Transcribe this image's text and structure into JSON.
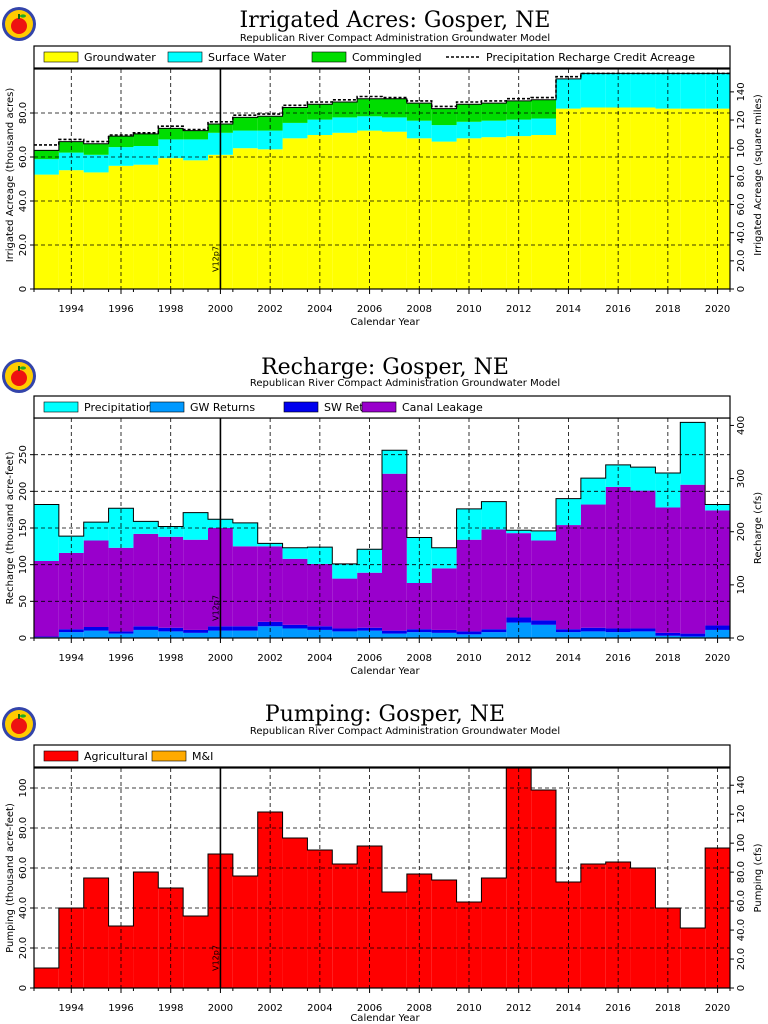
{
  "chart_data": [
    {
      "type": "area",
      "title": "Irrigated Acres: Gosper, NE",
      "subtitle": "Republican River Compact Administration Groundwater Model",
      "xlabel": "Calendar Year",
      "ylabel": "Irrigated Acreage (thousand acres)",
      "ylabel_right": "Irrigated Acreage (square miles)",
      "xlim": [
        1993,
        2021
      ],
      "ylim": [
        0,
        100
      ],
      "ylim_right": [
        0,
        156.25
      ],
      "x_ticks": [
        "1994",
        "1996",
        "1998",
        "2000",
        "2002",
        "2004",
        "2006",
        "2008",
        "2010",
        "2012",
        "2014",
        "2016",
        "2018",
        "2020"
      ],
      "y_ticks": [
        "0",
        "20.0",
        "40.0",
        "60.0",
        "80.0"
      ],
      "y_ticks_right": [
        "0",
        "20.0",
        "40.0",
        "60.0",
        "80.0",
        "100",
        "120",
        "140"
      ],
      "annotation": "V12p7",
      "annotation_x": 2000.5,
      "legend": [
        "Groundwater",
        "Surface Water",
        "Commingled",
        "Precipitation Recharge Credit Acreage"
      ],
      "colors": [
        "#ffff00",
        "#00ffff",
        "#00dd00",
        "#000000"
      ],
      "grid": true,
      "years": [
        1993,
        1994,
        1995,
        1996,
        1997,
        1998,
        1999,
        2000,
        2001,
        2002,
        2003,
        2004,
        2005,
        2006,
        2007,
        2008,
        2009,
        2010,
        2011,
        2012,
        2013,
        2014,
        2015,
        2016,
        2017,
        2018,
        2019,
        2020
      ],
      "series": [
        {
          "name": "Groundwater",
          "values": [
            52,
            54,
            53,
            56,
            56.5,
            59.5,
            58.5,
            61,
            64,
            63.5,
            68.5,
            70,
            71,
            72,
            71.5,
            68.5,
            67,
            68.5,
            69,
            69.5,
            70,
            82,
            82.5,
            82.5,
            82.5,
            82,
            82,
            82
          ]
        },
        {
          "name": "Surface Water",
          "values": [
            7,
            8,
            8,
            8.5,
            8.5,
            8.5,
            9.5,
            10,
            8,
            8.5,
            7,
            7,
            7,
            6.5,
            6.5,
            8,
            7.5,
            7.5,
            7.5,
            7.5,
            7.5,
            13.5,
            15.5,
            15.5,
            15.5,
            16,
            16,
            16
          ]
        },
        {
          "name": "Commingled",
          "values": [
            4,
            5,
            5,
            5,
            5.5,
            5,
            4,
            4,
            6,
            6.5,
            7,
            7,
            7,
            8,
            8.5,
            8,
            7.5,
            8,
            8,
            8.5,
            8.5,
            0,
            0,
            0,
            0,
            0,
            0,
            0
          ]
        }
      ],
      "precip_credit": [
        65.5,
        68,
        67,
        70,
        71,
        74,
        72.5,
        76,
        79,
        79.5,
        83.5,
        85,
        86,
        87.5,
        87,
        85.5,
        83,
        85,
        85.5,
        86.5,
        87,
        96.5,
        98,
        98,
        98,
        98,
        98,
        98
      ]
    },
    {
      "type": "area",
      "title": "Recharge: Gosper, NE",
      "subtitle": "Republican River Compact Administration Groundwater Model",
      "xlabel": "Calendar Year",
      "ylabel": "Recharge (thousand acre-feet)",
      "ylabel_right": "Recharge (cfs)",
      "xlim": [
        1993,
        2021
      ],
      "ylim": [
        0,
        300
      ],
      "ylim_right": [
        0,
        414
      ],
      "x_ticks": [
        "1994",
        "1996",
        "1998",
        "2000",
        "2002",
        "2004",
        "2006",
        "2008",
        "2010",
        "2012",
        "2014",
        "2016",
        "2018",
        "2020"
      ],
      "y_ticks": [
        "0",
        "50",
        "100",
        "150",
        "200",
        "250"
      ],
      "y_ticks_right": [
        "0",
        "100",
        "200",
        "300",
        "400"
      ],
      "annotation": "V12p7",
      "annotation_x": 2000.5,
      "legend": [
        "Precipitation",
        "GW Returns",
        "SW Returns",
        "Canal Leakage"
      ],
      "colors": [
        "#00ffff",
        "#0099ff",
        "#0000ee",
        "#9900cc"
      ],
      "grid": true,
      "years": [
        1993,
        1994,
        1995,
        1996,
        1997,
        1998,
        1999,
        2000,
        2001,
        2002,
        2003,
        2004,
        2005,
        2006,
        2007,
        2008,
        2009,
        2010,
        2011,
        2012,
        2013,
        2014,
        2015,
        2016,
        2017,
        2018,
        2019,
        2020
      ],
      "series": [
        {
          "name": "GW Returns",
          "values": [
            1,
            8,
            10,
            6,
            11,
            9,
            7,
            10,
            10,
            16,
            13,
            11,
            9,
            10,
            6,
            8,
            7,
            5,
            8,
            21,
            18,
            8,
            9,
            8,
            9,
            3,
            2,
            11
          ]
        },
        {
          "name": "SW Returns",
          "values": [
            1,
            4,
            5,
            3,
            5,
            5,
            4,
            6,
            6,
            6,
            5,
            5,
            4,
            4,
            4,
            4,
            4,
            4,
            4,
            7,
            6,
            4,
            5,
            5,
            4,
            4,
            4,
            6
          ]
        },
        {
          "name": "Canal Leakage",
          "values": [
            103,
            104,
            118,
            114,
            126,
            124,
            123,
            134,
            109,
            103,
            90,
            85,
            68,
            75,
            214,
            63,
            84,
            125,
            136,
            115,
            109,
            142,
            168,
            193,
            188,
            171,
            203,
            157
          ]
        },
        {
          "name": "Precipitation",
          "values": [
            77,
            23,
            25,
            54,
            17,
            14,
            37,
            12,
            32,
            4,
            15,
            23,
            20,
            32,
            32,
            62,
            28,
            42,
            38,
            4,
            13,
            36,
            36,
            30,
            32,
            47,
            85,
            8
          ]
        }
      ]
    },
    {
      "type": "area",
      "title": "Pumping: Gosper, NE",
      "subtitle": "Republican River Compact Administration Groundwater Model",
      "xlabel": "Calendar Year",
      "ylabel": "Pumping (thousand acre-feet)",
      "ylabel_right": "Pumping (cfs)",
      "xlim": [
        1993,
        2021
      ],
      "ylim": [
        0,
        110
      ],
      "ylim_right": [
        0,
        151.9
      ],
      "x_ticks": [
        "1994",
        "1996",
        "1998",
        "2000",
        "2002",
        "2004",
        "2006",
        "2008",
        "2010",
        "2012",
        "2014",
        "2016",
        "2018",
        "2020"
      ],
      "y_ticks": [
        "0",
        "20.0",
        "40.0",
        "60.0",
        "80.0",
        "100"
      ],
      "y_ticks_right": [
        "0",
        "20.0",
        "40.0",
        "60.0",
        "80.0",
        "100",
        "120",
        "140"
      ],
      "annotation": "V12p7",
      "annotation_x": 2000.5,
      "legend": [
        "Agricultural",
        "M&I"
      ],
      "colors": [
        "#ff0000",
        "#ffaa00"
      ],
      "grid": true,
      "years": [
        1993,
        1994,
        1995,
        1996,
        1997,
        1998,
        1999,
        2000,
        2001,
        2002,
        2003,
        2004,
        2005,
        2006,
        2007,
        2008,
        2009,
        2010,
        2011,
        2012,
        2013,
        2014,
        2015,
        2016,
        2017,
        2018,
        2019,
        2020
      ],
      "series": [
        {
          "name": "Agricultural",
          "values": [
            10,
            40,
            55,
            31,
            58,
            50,
            36,
            67,
            56,
            88,
            75,
            69,
            62,
            71,
            48,
            57,
            54,
            43,
            55,
            110,
            99,
            53,
            62,
            63,
            60,
            40,
            30,
            70
          ]
        },
        {
          "name": "M&I",
          "values": [
            0,
            0,
            0,
            0,
            0,
            0,
            0,
            0,
            0,
            0,
            0,
            0,
            0,
            0,
            0,
            0,
            0,
            0,
            0,
            0,
            0,
            0,
            0,
            0,
            0,
            0,
            0,
            0
          ]
        }
      ]
    }
  ]
}
